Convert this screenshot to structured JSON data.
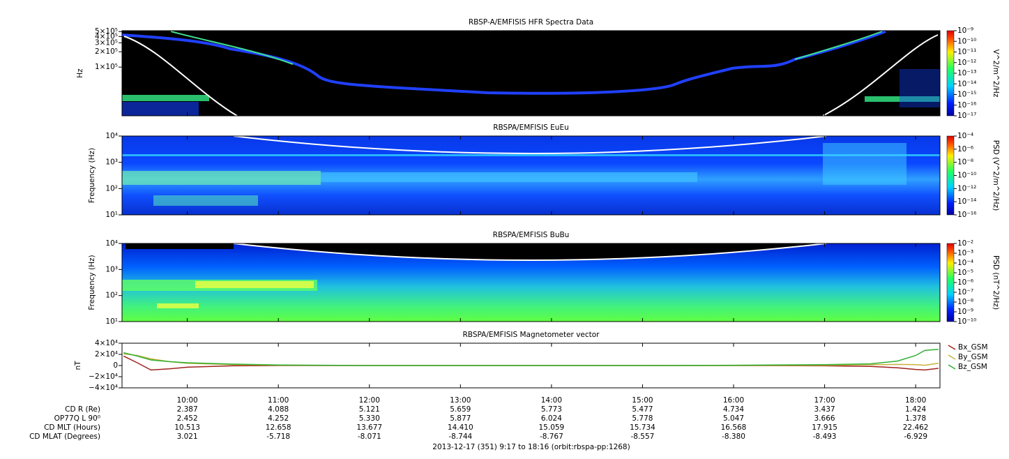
{
  "chart_data": [
    {
      "type": "spectrogram",
      "title": "RBSP-A/EMFISIS  HFR Spectra Data",
      "ylabel": "Hz",
      "log": true,
      "ylim": [
        11000,
        520000
      ],
      "yticks": [
        {
          "value": 100000,
          "label": "1×10⁵"
        },
        {
          "value": 200000,
          "label": "2×10⁵"
        },
        {
          "value": 300000,
          "label": "3×10⁵"
        },
        {
          "value": 400000,
          "label": "4×10⁵"
        },
        {
          "value": 500000,
          "label": "5×10⁵"
        }
      ],
      "colorbar_label": "V^2/m^2/Hz",
      "clim": [
        1e-17,
        1e-09
      ],
      "cticks": [
        {
          "value": 1e-09,
          "label": "10⁻⁹"
        },
        {
          "value": 1e-10,
          "label": "10⁻¹⁰"
        },
        {
          "value": 1e-11,
          "label": "10⁻¹¹"
        },
        {
          "value": 1e-12,
          "label": "10⁻¹²"
        },
        {
          "value": 1e-13,
          "label": "10⁻¹³"
        },
        {
          "value": 1e-14,
          "label": "10⁻¹⁴"
        },
        {
          "value": 1e-15,
          "label": "10⁻¹⁵"
        },
        {
          "value": 1e-16,
          "label": "10⁻¹⁶"
        },
        {
          "value": 1e-17,
          "label": "10⁻¹⁷"
        }
      ]
    },
    {
      "type": "spectrogram",
      "title": "RBSPA/EMFISIS  EuEu",
      "ylabel": "Frequency (Hz)",
      "log": true,
      "ylim": [
        10,
        10000
      ],
      "yticks": [
        {
          "value": 10,
          "label": "10¹"
        },
        {
          "value": 100,
          "label": "10²"
        },
        {
          "value": 1000,
          "label": "10³"
        },
        {
          "value": 10000,
          "label": "10⁴"
        }
      ],
      "colorbar_label": "PSD (V^2/m^2/Hz)",
      "clim": [
        1e-16,
        0.0001
      ],
      "cticks": [
        {
          "value": 0.0001,
          "label": "10⁻⁴"
        },
        {
          "value": 1e-06,
          "label": "10⁻⁶"
        },
        {
          "value": 1e-08,
          "label": "10⁻⁸"
        },
        {
          "value": 1e-10,
          "label": "10⁻¹⁰"
        },
        {
          "value": 1e-12,
          "label": "10⁻¹²"
        },
        {
          "value": 1e-14,
          "label": "10⁻¹⁴"
        },
        {
          "value": 1e-16,
          "label": "10⁻¹⁶"
        }
      ]
    },
    {
      "type": "spectrogram",
      "title": "RBSPA/EMFISIS  BuBu",
      "ylabel": "Frequency (Hz)",
      "log": true,
      "ylim": [
        10,
        10000
      ],
      "yticks": [
        {
          "value": 10,
          "label": "10¹"
        },
        {
          "value": 100,
          "label": "10²"
        },
        {
          "value": 1000,
          "label": "10³"
        },
        {
          "value": 10000,
          "label": "10⁴"
        }
      ],
      "colorbar_label": "PSD (nT^2/Hz)",
      "clim": [
        1e-10,
        0.01
      ],
      "cticks": [
        {
          "value": 0.01,
          "label": "10⁻²"
        },
        {
          "value": 0.001,
          "label": "10⁻³"
        },
        {
          "value": 0.0001,
          "label": "10⁻⁴"
        },
        {
          "value": 1e-05,
          "label": "10⁻⁵"
        },
        {
          "value": 1e-06,
          "label": "10⁻⁶"
        },
        {
          "value": 1e-07,
          "label": "10⁻⁷"
        },
        {
          "value": 1e-08,
          "label": "10⁻⁸"
        },
        {
          "value": 1e-09,
          "label": "10⁻⁹"
        },
        {
          "value": 1e-10,
          "label": "10⁻¹⁰"
        }
      ]
    },
    {
      "type": "line",
      "title": "RBSPA/EMFISIS  Magnetometer vector",
      "ylabel": "nT",
      "ylim": [
        -40000,
        40000
      ],
      "yticks": [
        {
          "value": -40000,
          "label": "−4×10⁴"
        },
        {
          "value": -20000,
          "label": "−2×10⁴"
        },
        0,
        {
          "value": 20000,
          "label": "2×10⁴"
        },
        {
          "value": 40000,
          "label": "4×10⁴"
        }
      ],
      "x": [
        9.3,
        9.45,
        9.6,
        9.8,
        10,
        10.5,
        11,
        12,
        13,
        14,
        15,
        16,
        17,
        17.5,
        17.8,
        18,
        18.1,
        18.25
      ],
      "series": [
        {
          "name": "Bx_GSM",
          "color": "#a0201e",
          "values": [
            17000,
            5000,
            -8000,
            -6000,
            -3000,
            -500,
            0,
            0,
            0,
            0,
            0,
            0,
            -500,
            -1500,
            -4000,
            -7000,
            -8000,
            -5000
          ]
        },
        {
          "name": "By_GSM",
          "color": "#c8b040",
          "values": [
            21000,
            18000,
            12000,
            7000,
            4000,
            1500,
            500,
            0,
            0,
            0,
            0,
            0,
            500,
            1500,
            2000,
            1500,
            500,
            4000
          ]
        },
        {
          "name": "Bz_GSM",
          "color": "#30b030",
          "values": [
            23000,
            17000,
            10000,
            7000,
            5000,
            2500,
            1000,
            0,
            0,
            0,
            0,
            500,
            1500,
            3000,
            8000,
            18000,
            27000,
            29000
          ]
        }
      ]
    }
  ],
  "time_axis": {
    "xlim": [
      9.283,
      18.267
    ],
    "xticks": [
      {
        "value": 10,
        "label": "10:00"
      },
      {
        "value": 11,
        "label": "11:00"
      },
      {
        "value": 12,
        "label": "12:00"
      },
      {
        "value": 13,
        "label": "13:00"
      },
      {
        "value": 14,
        "label": "14:00"
      },
      {
        "value": 15,
        "label": "15:00"
      },
      {
        "value": 16,
        "label": "16:00"
      },
      {
        "value": 17,
        "label": "17:00"
      },
      {
        "value": 18,
        "label": "18:00"
      }
    ]
  },
  "ephemeris": {
    "rows": [
      {
        "label": "CD R (Re)",
        "values": [
          "2.387",
          "4.088",
          "5.121",
          "5.659",
          "5.773",
          "5.477",
          "4.734",
          "3.437",
          "1.424"
        ]
      },
      {
        "label": "OP77Q L 90⁰",
        "values": [
          "2.452",
          "4.252",
          "5.330",
          "5.877",
          "6.024",
          "5.778",
          "5.047",
          "3.666",
          "1.378"
        ]
      },
      {
        "label": "CD MLT (Hours)",
        "values": [
          "10.513",
          "12.658",
          "13.677",
          "14.410",
          "15.059",
          "15.734",
          "16.568",
          "17.915",
          "22.462"
        ]
      },
      {
        "label": "CD MLAT (Degrees)",
        "values": [
          "3.021",
          "-5.718",
          "-8.071",
          "-8.744",
          "-8.767",
          "-8.557",
          "-8.380",
          "-8.493",
          "-6.929"
        ]
      }
    ]
  },
  "footer": "2013-12-17 (351) 9:17 to 18:16 (orbit:rbspa-pp:1268)"
}
